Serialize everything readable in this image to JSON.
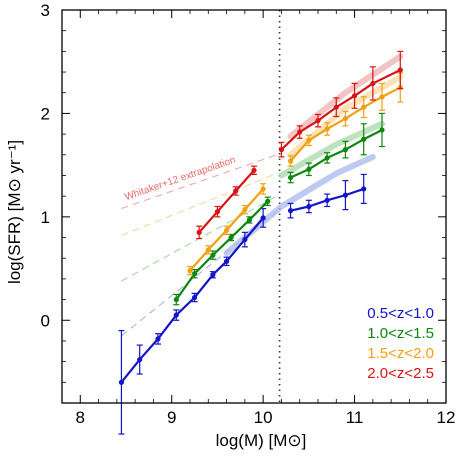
{
  "chart_data": {
    "type": "line",
    "xlabel": "log(M) [M⊙]",
    "ylabel": "log(SFR) [M⊙ yr⁻¹]",
    "xlim": [
      7.8,
      12
    ],
    "ylim": [
      -0.8,
      3
    ],
    "x_ticks": [
      8,
      9,
      10,
      11,
      12
    ],
    "y_ticks": [
      0,
      1,
      2,
      3
    ],
    "grid": false,
    "legend_position": "bottom-right",
    "vertical_line_x": 10.18,
    "annotation": {
      "text": "Whitaker+12 extrapolation",
      "color": "#e86a6a"
    },
    "series": [
      {
        "name": "0.5<z<1.0",
        "color": "#1414c8",
        "light_color": "#a9b8ec",
        "low": {
          "x": [
            8.45,
            8.65,
            8.85,
            9.05,
            9.25,
            9.45,
            9.6,
            9.8,
            10.0
          ],
          "y": [
            -0.6,
            -0.38,
            -0.18,
            0.05,
            0.22,
            0.44,
            0.57,
            0.78,
            0.99
          ],
          "err": [
            0.5,
            0.14,
            0.05,
            0.05,
            0.04,
            0.03,
            0.04,
            0.07,
            0.09
          ]
        },
        "high": {
          "x": [
            10.3,
            10.5,
            10.7,
            10.9,
            11.1
          ],
          "y": [
            1.06,
            1.1,
            1.16,
            1.21,
            1.27
          ],
          "err": [
            0.07,
            0.06,
            0.06,
            0.14,
            0.14
          ]
        },
        "extrap": {
          "x": [
            8.45,
            10.15
          ],
          "y": [
            -0.15,
            1.05
          ]
        },
        "ms": {
          "x": [
            9.6,
            10.2,
            10.8,
            11.2
          ],
          "y": [
            0.65,
            1.1,
            1.42,
            1.58
          ]
        }
      },
      {
        "name": "1.0<z<1.5",
        "color": "#0d870d",
        "light_color": "#a8d8a8",
        "low": {
          "x": [
            9.05,
            9.25,
            9.45,
            9.65,
            9.85,
            10.05
          ],
          "y": [
            0.2,
            0.45,
            0.63,
            0.8,
            0.97,
            1.15
          ],
          "err": [
            0.05,
            0.04,
            0.04,
            0.03,
            0.03,
            0.04
          ]
        },
        "high": {
          "x": [
            10.3,
            10.5,
            10.7,
            10.9,
            11.1,
            11.3
          ],
          "y": [
            1.38,
            1.46,
            1.57,
            1.65,
            1.75,
            1.84
          ],
          "err": [
            0.05,
            0.06,
            0.05,
            0.08,
            0.15,
            0.16
          ]
        },
        "extrap": {
          "x": [
            8.45,
            10.15
          ],
          "y": [
            0.38,
            1.2
          ]
        },
        "ms": {
          "x": [
            10.2,
            10.8,
            11.3
          ],
          "y": [
            1.4,
            1.7,
            1.9
          ]
        }
      },
      {
        "name": "1.5<z<2.0",
        "color": "#f0a010",
        "light_color": "#f8d9a0",
        "low": {
          "x": [
            9.2,
            9.4,
            9.6,
            9.8,
            10.0
          ],
          "y": [
            0.48,
            0.68,
            0.87,
            1.07,
            1.27
          ],
          "err": [
            0.04,
            0.04,
            0.04,
            0.04,
            0.05
          ]
        },
        "high": {
          "x": [
            10.3,
            10.5,
            10.7,
            10.9,
            11.1,
            11.3,
            11.5
          ],
          "y": [
            1.54,
            1.74,
            1.85,
            1.95,
            2.06,
            2.16,
            2.25
          ],
          "err": [
            0.05,
            0.05,
            0.06,
            0.07,
            0.1,
            0.13,
            0.14
          ]
        },
        "extrap": {
          "x": [
            8.45,
            10.15
          ],
          "y": [
            0.82,
            1.42
          ]
        },
        "ms": {
          "x": [
            10.3,
            10.9,
            11.5
          ],
          "y": [
            1.6,
            2.05,
            2.35
          ]
        }
      },
      {
        "name": "2.0<z<2.5",
        "color": "#d81414",
        "light_color": "#f0b0b0",
        "low": {
          "x": [
            9.3,
            9.5,
            9.7,
            9.9
          ],
          "y": [
            0.85,
            1.05,
            1.25,
            1.45
          ],
          "err": [
            0.06,
            0.05,
            0.04,
            0.04
          ]
        },
        "high": {
          "x": [
            10.2,
            10.4,
            10.6,
            10.8,
            11.0,
            11.2,
            11.5
          ],
          "y": [
            1.65,
            1.82,
            1.93,
            2.06,
            2.17,
            2.29,
            2.42
          ],
          "err": [
            0.07,
            0.06,
            0.06,
            0.09,
            0.12,
            0.16,
            0.18
          ]
        },
        "extrap": {
          "x": [
            8.45,
            10.15
          ],
          "y": [
            1.08,
            1.6
          ]
        },
        "ms": {
          "x": [
            10.3,
            10.9,
            11.5
          ],
          "y": [
            1.78,
            2.2,
            2.55
          ]
        }
      }
    ]
  }
}
